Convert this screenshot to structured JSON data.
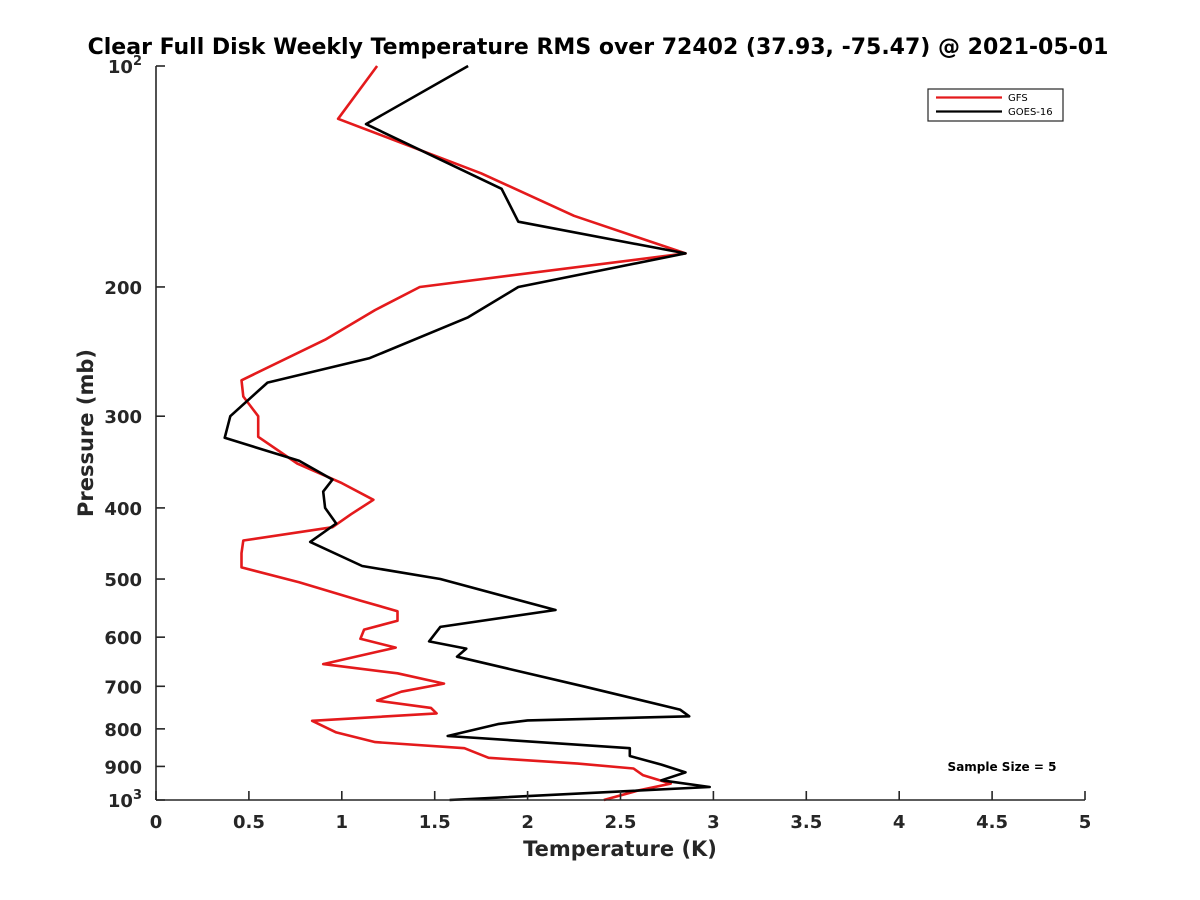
{
  "chart_data": {
    "type": "line",
    "title": "Clear Full Disk Weekly Temperature RMS over 72402 (37.93, -75.47) @ 2021-05-01",
    "xlabel": "Temperature (K)",
    "ylabel": "Pressure (mb)",
    "xlim": [
      0,
      5
    ],
    "ylim": [
      100,
      1000
    ],
    "yscale": "log",
    "y_reversed": true,
    "grid": false,
    "x_ticks": [
      "0",
      "0.5",
      "1",
      "1.5",
      "2",
      "2.5",
      "3",
      "3.5",
      "4",
      "4.5",
      "5"
    ],
    "y_ticks": [
      {
        "value": 100,
        "base": "10",
        "exp": "2"
      },
      {
        "value": 200,
        "label": "200"
      },
      {
        "value": 300,
        "label": "300"
      },
      {
        "value": 400,
        "label": "400"
      },
      {
        "value": 500,
        "label": "500"
      },
      {
        "value": 600,
        "label": "600"
      },
      {
        "value": 700,
        "label": "700"
      },
      {
        "value": 800,
        "label": "800"
      },
      {
        "value": 900,
        "label": "900"
      },
      {
        "value": 1000,
        "base": "10",
        "exp": "3"
      }
    ],
    "legend_position": "top-right",
    "annotation": "Sample Size = 5",
    "series": [
      {
        "name": "GFS",
        "color": "#e41a1c",
        "points": [
          [
            1.19,
            100
          ],
          [
            0.98,
            118
          ],
          [
            1.75,
            140
          ],
          [
            2.25,
            160
          ],
          [
            2.85,
            180
          ],
          [
            1.42,
            200
          ],
          [
            1.18,
            215
          ],
          [
            0.91,
            236
          ],
          [
            0.46,
            268
          ],
          [
            0.47,
            282
          ],
          [
            0.55,
            300
          ],
          [
            0.55,
            320
          ],
          [
            0.76,
            348
          ],
          [
            1.0,
            370
          ],
          [
            1.17,
            390
          ],
          [
            1.05,
            408
          ],
          [
            0.95,
            425
          ],
          [
            0.47,
            443
          ],
          [
            0.46,
            461
          ],
          [
            0.46,
            482
          ],
          [
            0.77,
            505
          ],
          [
            1.1,
            535
          ],
          [
            1.3,
            553
          ],
          [
            1.3,
            570
          ],
          [
            1.12,
            586
          ],
          [
            1.1,
            603
          ],
          [
            1.29,
            620
          ],
          [
            0.9,
            653
          ],
          [
            1.3,
            672
          ],
          [
            1.55,
            694
          ],
          [
            1.32,
            712
          ],
          [
            1.19,
            732
          ],
          [
            1.48,
            749
          ],
          [
            1.51,
            762
          ],
          [
            0.84,
            780
          ],
          [
            0.97,
            809
          ],
          [
            1.18,
            834
          ],
          [
            1.66,
            850
          ],
          [
            1.79,
            876
          ],
          [
            2.27,
            892
          ],
          [
            2.57,
            906
          ],
          [
            2.62,
            925
          ],
          [
            2.77,
            950
          ],
          [
            2.6,
            970
          ],
          [
            2.41,
            1000
          ]
        ]
      },
      {
        "name": "GOES-16",
        "color": "#000000",
        "points": [
          [
            1.68,
            100
          ],
          [
            1.13,
            120
          ],
          [
            1.86,
            147
          ],
          [
            1.95,
            163
          ],
          [
            2.85,
            180
          ],
          [
            1.95,
            200
          ],
          [
            1.68,
            220
          ],
          [
            1.15,
            250
          ],
          [
            0.6,
            270
          ],
          [
            0.4,
            300
          ],
          [
            0.37,
            321
          ],
          [
            0.77,
            345
          ],
          [
            0.95,
            366
          ],
          [
            0.9,
            380
          ],
          [
            0.91,
            400
          ],
          [
            0.97,
            420
          ],
          [
            0.83,
            445
          ],
          [
            1.11,
            480
          ],
          [
            1.53,
            500
          ],
          [
            2.15,
            551
          ],
          [
            1.53,
            581
          ],
          [
            1.47,
            608
          ],
          [
            1.67,
            622
          ],
          [
            1.62,
            638
          ],
          [
            2.3,
            700
          ],
          [
            2.82,
            753
          ],
          [
            2.87,
            769
          ],
          [
            2.0,
            779
          ],
          [
            1.84,
            788
          ],
          [
            1.57,
            818
          ],
          [
            2.55,
            850
          ],
          [
            2.55,
            871
          ],
          [
            2.72,
            895
          ],
          [
            2.85,
            917
          ],
          [
            2.72,
            940
          ],
          [
            2.98,
            960
          ],
          [
            1.58,
            1000
          ]
        ]
      }
    ]
  }
}
